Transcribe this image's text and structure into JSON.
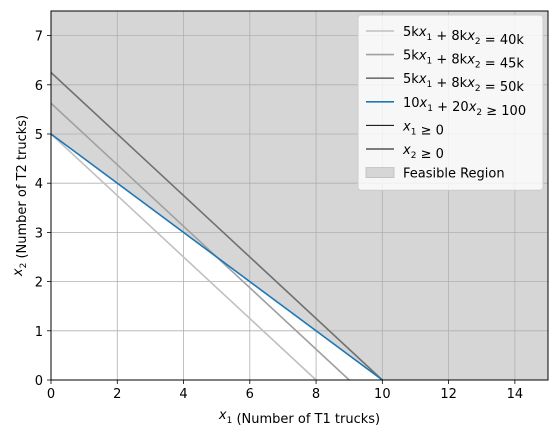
{
  "chart_data": {
    "type": "line",
    "xlabel": "x1 (Number of T1 trucks)",
    "ylabel": "x2 (Number of T2 trucks)",
    "xlim": [
      0,
      15
    ],
    "ylim": [
      0,
      7.5
    ],
    "x_ticks": [
      0,
      2,
      4,
      6,
      8,
      10,
      12,
      14
    ],
    "y_ticks": [
      0,
      1,
      2,
      3,
      4,
      5,
      6,
      7
    ],
    "grid": true,
    "legend_placement": "top-right",
    "feasible_region": {
      "name": "Feasible Region",
      "color": "#d6d6d6",
      "boundary": [
        [
          0,
          5
        ],
        [
          10,
          0
        ],
        [
          15,
          0
        ],
        [
          15,
          7.5
        ],
        [
          0,
          7.5
        ]
      ]
    },
    "series": [
      {
        "name": "5kx1 + 8kx2 = 40k",
        "color": "#c0c0c0",
        "x": [
          0,
          8
        ],
        "y": [
          5,
          0
        ]
      },
      {
        "name": "5kx1 + 8kx2 = 45k",
        "color": "#a0a0a0",
        "x": [
          0,
          9
        ],
        "y": [
          5.625,
          0
        ]
      },
      {
        "name": "5kx1 + 8kx2 = 50k",
        "color": "#707070",
        "x": [
          0,
          10
        ],
        "y": [
          6.25,
          0
        ]
      },
      {
        "name": "10x1 + 20x2 ≥ 100",
        "color": "#1f77b4",
        "x": [
          0,
          10
        ],
        "y": [
          5,
          0
        ]
      },
      {
        "name": "x1 ≥ 0",
        "color": "#000000",
        "x": [
          0,
          0
        ],
        "y": [
          0,
          7.5
        ]
      },
      {
        "name": "x2 ≥ 0",
        "color": "#000000",
        "x": [
          0,
          15
        ],
        "y": [
          0,
          0
        ]
      }
    ]
  }
}
